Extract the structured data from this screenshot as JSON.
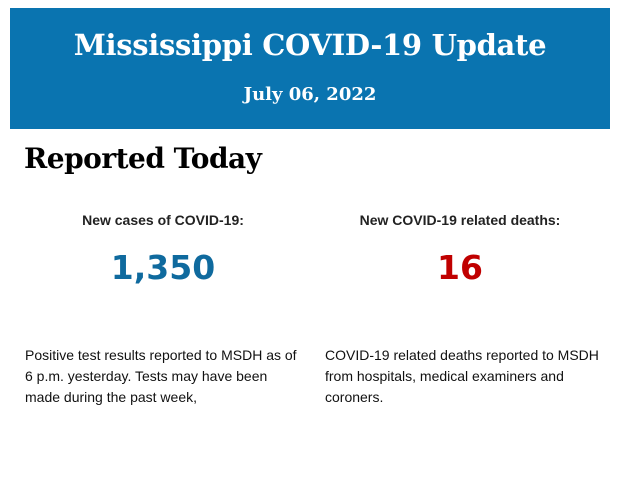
{
  "header": {
    "title": "Mississippi COVID-19 Update",
    "date": "July 06, 2022",
    "background_color": "#0a74b0"
  },
  "section": {
    "title": "Reported Today"
  },
  "cases": {
    "label": "New cases of COVID-19:",
    "value": "1,350",
    "color": "#0f6a9e",
    "description": "Positive test results reported to MSDH as of 6 p.m. yesterday. Tests may have been made during the past week,"
  },
  "deaths": {
    "label": "New COVID-19 related deaths:",
    "value": "16",
    "color": "#c00000",
    "description": "COVID-19 related deaths reported to MSDH from hospitals, medical examiners and coroners."
  }
}
